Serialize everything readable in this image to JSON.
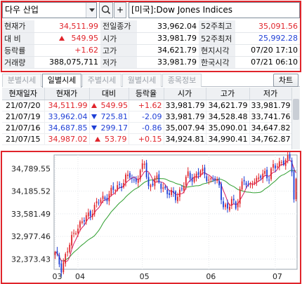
{
  "search": {
    "symbol_value": "다우 산업",
    "add_label": "+",
    "name_value": "[미국]:Dow Jones Indices"
  },
  "quote": {
    "rows": [
      [
        {
          "label": "현재가",
          "value": "34,511.99",
          "color": "red"
        },
        {
          "label": "전일종가",
          "value": "33,962.04",
          "color": "black"
        },
        {
          "label": "52주최고",
          "value": "35,091.56",
          "color": "red"
        }
      ],
      [
        {
          "label": "대 비",
          "value": "549.95",
          "color": "red",
          "arrow": "up"
        },
        {
          "label": "시가",
          "value": "33,981.79",
          "color": "black"
        },
        {
          "label": "52주최저",
          "value": "25,992.28",
          "color": "blue"
        }
      ],
      [
        {
          "label": "등락률",
          "value": "+1.62",
          "color": "red"
        },
        {
          "label": "고가",
          "value": "34,621.79",
          "color": "black"
        },
        {
          "label": "현지시각",
          "value": "07/20 17:10",
          "color": "black"
        }
      ],
      [
        {
          "label": "거래량",
          "value": "388,075,711",
          "color": "black"
        },
        {
          "label": "저가",
          "value": "33,981.79",
          "color": "black"
        },
        {
          "label": "한국시각",
          "value": "07/21 06:10",
          "color": "black"
        }
      ]
    ]
  },
  "tabs": [
    {
      "label": "분별시세",
      "active": false
    },
    {
      "label": "일별시세",
      "active": true
    },
    {
      "label": "주별시세",
      "active": false
    },
    {
      "label": "월별시세",
      "active": false
    },
    {
      "label": "종목정보",
      "active": false
    }
  ],
  "chart_button_label": "차트",
  "daily": {
    "columns": [
      "현재일자",
      "현재가",
      "대비",
      "등락율",
      "시가",
      "고가",
      "저가"
    ],
    "rows": [
      {
        "date": "21/07/20",
        "close": "34,511.99",
        "change": "549.95",
        "rate": "+1.62",
        "open": "33,981.79",
        "high": "34,621.79",
        "low": "33,981.79",
        "dir": "up"
      },
      {
        "date": "21/07/19",
        "close": "33,962.04",
        "change": "725.81",
        "rate": "-2.09",
        "open": "33,981.79",
        "high": "34,528.48",
        "low": "33,741.76",
        "dir": "down"
      },
      {
        "date": "21/07/16",
        "close": "34,687.85",
        "change": "299.17",
        "rate": "-0.86",
        "open": "35,007.94",
        "high": "35,090.01",
        "low": "34,647.82",
        "dir": "down"
      },
      {
        "date": "21/07/15",
        "close": "34,987.02",
        "change": "53.79",
        "rate": "+0.15",
        "open": "34,924.81",
        "high": "34,990.41",
        "low": "34,762.87",
        "dir": "up"
      }
    ]
  },
  "colors": {
    "up": "#e0242b",
    "down": "#1f3fd6",
    "ma_short": "#d81b60",
    "ma_long": "#2e9e2e",
    "frame": "#e0242b"
  },
  "chart_data": {
    "type": "candlestick",
    "y_ticks": [
      "34,789.55",
      "34,185.52",
      "33,581.49",
      "32,977.46",
      "32,373.43"
    ],
    "y_tick_values": [
      34789.55,
      34185.52,
      33581.49,
      32977.46,
      32373.43
    ],
    "ylim": [
      32100,
      35150
    ],
    "x_ticks": [
      {
        "label": "03",
        "index": 0
      },
      {
        "label": "04",
        "index": 11
      },
      {
        "label": "05",
        "index": 42
      },
      {
        "label": "06",
        "index": 74
      },
      {
        "label": "07",
        "index": 106
      }
    ],
    "n_points": 117,
    "anchors": [
      [
        0,
        32500
      ],
      [
        3,
        32150
      ],
      [
        6,
        32600
      ],
      [
        10,
        33200
      ],
      [
        14,
        33400
      ],
      [
        18,
        33700
      ],
      [
        22,
        33950
      ],
      [
        26,
        34100
      ],
      [
        30,
        34300
      ],
      [
        34,
        34500
      ],
      [
        36,
        34600
      ],
      [
        38,
        34450
      ],
      [
        41,
        34650
      ],
      [
        43,
        34950
      ],
      [
        45,
        34300
      ],
      [
        48,
        34500
      ],
      [
        52,
        34300
      ],
      [
        55,
        34100
      ],
      [
        58,
        34050
      ],
      [
        61,
        34250
      ],
      [
        64,
        34600
      ],
      [
        67,
        34550
      ],
      [
        70,
        34700
      ],
      [
        73,
        34600
      ],
      [
        75,
        34450
      ],
      [
        77,
        34500
      ],
      [
        79,
        34300
      ],
      [
        81,
        33850
      ],
      [
        83,
        33650
      ],
      [
        85,
        33950
      ],
      [
        87,
        33800
      ],
      [
        89,
        34200
      ],
      [
        91,
        34450
      ],
      [
        93,
        34300
      ],
      [
        95,
        34500
      ],
      [
        97,
        34400
      ],
      [
        99,
        34600
      ],
      [
        101,
        34700
      ],
      [
        103,
        34550
      ],
      [
        105,
        34800
      ],
      [
        107,
        34900
      ],
      [
        109,
        35000
      ],
      [
        111,
        34950
      ],
      [
        113,
        35050
      ],
      [
        114,
        34687.85
      ],
      [
        115,
        33962.04
      ],
      [
        116,
        34511.99
      ]
    ],
    "ma_short_period": 5,
    "ma_long_period": 20
  }
}
